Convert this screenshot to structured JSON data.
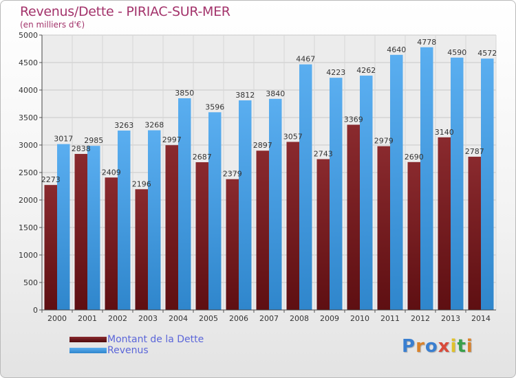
{
  "title": "Revenus/Dette - PIRIAC-SUR-MER",
  "subtitle": "(en milliers d'€)",
  "legend": [
    {
      "name": "Montant de la Dette",
      "color": "#7a1f22"
    },
    {
      "name": "Revenus",
      "color": "#4a9fe0"
    }
  ],
  "logo": {
    "letters": [
      "P",
      "r",
      "o",
      "x",
      "i",
      "t",
      "i"
    ],
    "colors": [
      "#3a7fd0",
      "#d9822b",
      "#3a7fd0",
      "#d94a3a",
      "#e0c22b",
      "#3aa04a",
      "#d9822b"
    ]
  },
  "chart_data": {
    "type": "bar",
    "categories": [
      "2000",
      "2001",
      "2002",
      "2003",
      "2004",
      "2005",
      "2006",
      "2007",
      "2008",
      "2009",
      "2010",
      "2011",
      "2012",
      "2013",
      "2014"
    ],
    "series": [
      {
        "name": "Montant de la Dette",
        "values": [
          2273,
          2838,
          2409,
          2196,
          2997,
          2687,
          2379,
          2897,
          3057,
          2743,
          3369,
          2979,
          2690,
          3140,
          2787
        ],
        "labels": [
          "2273",
          "2838",
          "2409",
          "2196",
          "2997",
          "2687",
          "2379",
          "2897",
          "3057",
          "2743",
          "3369",
          "2979",
          "2690",
          "3140",
          "2787"
        ]
      },
      {
        "name": "Revenus",
        "values": [
          3017,
          2985,
          3263,
          3268,
          3850,
          3596,
          3812,
          3840,
          4467,
          4223,
          4262,
          4640,
          4778,
          4590,
          4572
        ],
        "labels": [
          "3017",
          "2985",
          "3263",
          "3268",
          "3850",
          "3596",
          "3812",
          "3840",
          "4467",
          "4223",
          "4262",
          "4640",
          "4778",
          "4590",
          "4572"
        ]
      }
    ],
    "ylim": [
      0,
      5000
    ],
    "yticks": [
      "0",
      "500",
      "1000",
      "1500",
      "2000",
      "2500",
      "3000",
      "3500",
      "4000",
      "4500",
      "5000"
    ],
    "grid": true,
    "legend_position": "bottom-left"
  }
}
